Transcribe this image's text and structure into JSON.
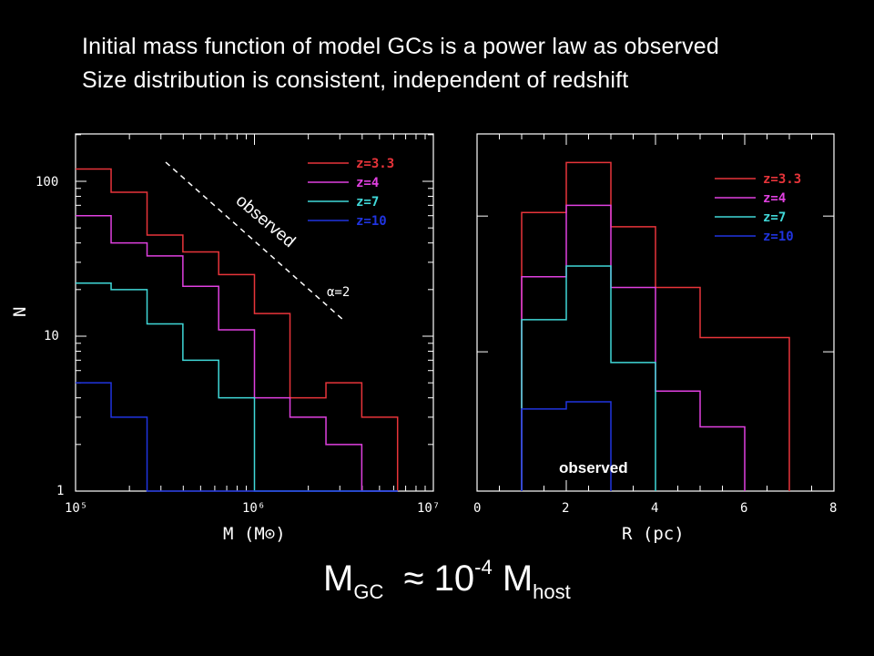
{
  "headline": {
    "line1": "Initial mass function of model GCs is a power law as observed",
    "line2": "Size distribution is consistent, independent of redshift"
  },
  "formula": {
    "lhs": "M",
    "lhs_sub": "GC",
    "approx": "≈",
    "coef": "10",
    "exp": "-4",
    "rhs": "M",
    "rhs_sub": "host"
  },
  "colors": {
    "z3.3": "#e8343a",
    "z4": "#e040e0",
    "z7": "#40d8d8",
    "z10": "#2034e0"
  },
  "chart_data": [
    {
      "type": "line",
      "step": true,
      "xlabel": "M (M⊙)",
      "ylabel": "N",
      "x_scale": "log",
      "y_scale": "log",
      "xlim": [
        100000,
        10000000
      ],
      "ylim": [
        1,
        200
      ],
      "x_tick_labels": [
        "10⁵",
        "10⁶",
        "10⁷"
      ],
      "y_tick_labels": [
        "1",
        "10",
        "100"
      ],
      "legend_position": "top-right",
      "annotations": {
        "observed": "observed",
        "alpha": "α=2"
      },
      "bin_edges": [
        100000,
        158000,
        251000,
        398000,
        631000,
        1000000,
        1580000,
        2510000,
        3980000,
        6310000
      ],
      "series": [
        {
          "name": "z=3.3",
          "color": "#e8343a",
          "values": [
            120,
            85,
            45,
            35,
            25,
            14,
            4,
            5,
            3
          ]
        },
        {
          "name": "z=4",
          "color": "#e040e0",
          "values": [
            60,
            40,
            33,
            21,
            11,
            4,
            3,
            2,
            1
          ]
        },
        {
          "name": "z=7",
          "color": "#40d8d8",
          "values": [
            22,
            20,
            12,
            7,
            4,
            1,
            1,
            1,
            1
          ]
        },
        {
          "name": "z=10",
          "color": "#2034e0",
          "values": [
            5,
            3,
            1,
            1,
            1,
            1,
            1,
            1,
            1
          ]
        }
      ]
    },
    {
      "type": "line",
      "step": true,
      "xlabel": "R (pc)",
      "xlim": [
        0,
        8
      ],
      "x_tick_labels": [
        "0",
        "2",
        "4",
        "6",
        "8"
      ],
      "legend_position": "top-right",
      "annotation": "observed",
      "bin_edges": [
        1,
        2,
        3,
        4,
        5,
        6,
        7
      ],
      "series": [
        {
          "name": "z=3.3",
          "color": "#e8343a",
          "values": [
            0.78,
            0.92,
            0.74,
            0.57,
            0.43,
            0.43
          ]
        },
        {
          "name": "z=4",
          "color": "#e040e0",
          "values": [
            0.6,
            0.8,
            0.57,
            0.28,
            0.18,
            0
          ]
        },
        {
          "name": "z=7",
          "color": "#40d8d8",
          "values": [
            0.48,
            0.63,
            0.36,
            0,
            0,
            0
          ]
        },
        {
          "name": "z=10",
          "color": "#2034e0",
          "values": [
            0.23,
            0.25,
            0,
            0,
            0,
            0
          ]
        }
      ]
    }
  ]
}
